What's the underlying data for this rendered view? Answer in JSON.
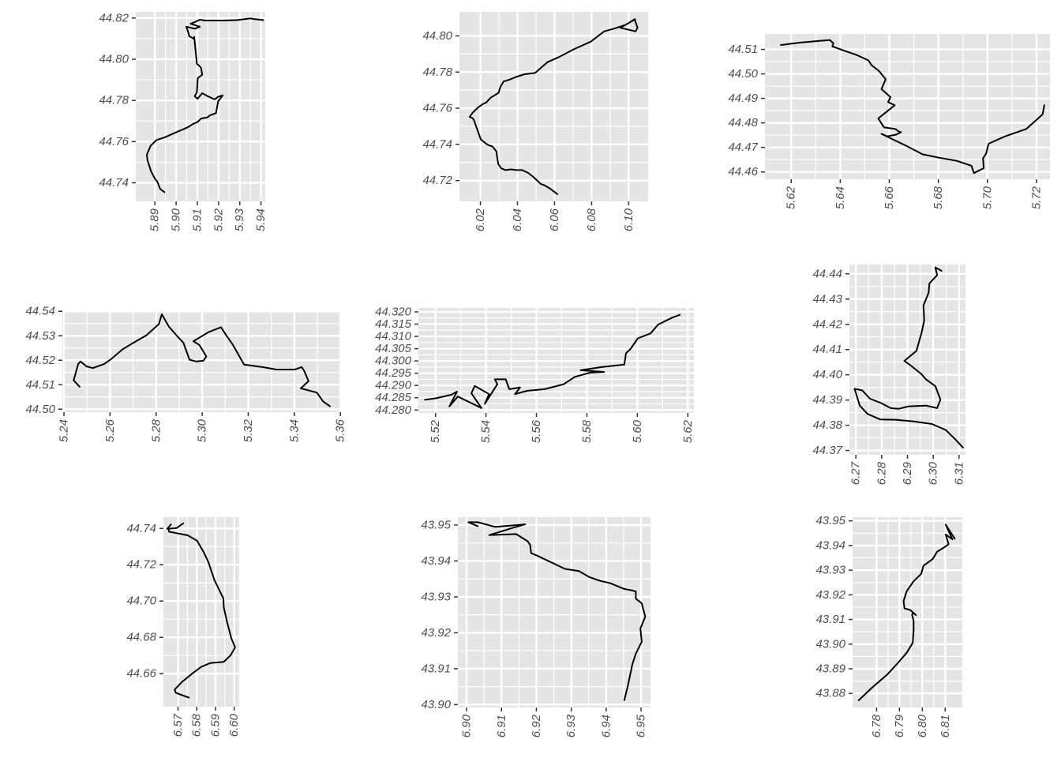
{
  "figure": {
    "background": "#ffffff",
    "panel_background": "#e5e5e5",
    "grid_color": "#ffffff",
    "line_color": "#000000",
    "tick_color": "#333333"
  },
  "chart_data": [
    {
      "type": "line",
      "xlim": [
        5.881,
        5.942
      ],
      "ylim": [
        44.731,
        44.823
      ],
      "xticks": [
        5.89,
        5.9,
        5.91,
        5.92,
        5.93,
        5.94
      ],
      "yticks": [
        44.74,
        44.76,
        44.78,
        44.8,
        44.82
      ],
      "xtick_labels": [
        "5.89",
        "5.90",
        "5.91",
        "5.92",
        "5.93",
        "5.94"
      ],
      "ytick_labels": [
        "44.74",
        "44.76",
        "44.78",
        "44.80",
        "44.82"
      ],
      "x": [
        5.8945,
        5.8925,
        5.8912,
        5.8903,
        5.8882,
        5.8865,
        5.8862,
        5.888,
        5.8908,
        5.8945,
        5.9,
        5.9052,
        5.9082,
        5.9101,
        5.9118,
        5.9148,
        5.9158,
        5.9188,
        5.9198,
        5.922,
        5.9198,
        5.9182,
        5.9165,
        5.915,
        5.9123,
        5.9101,
        5.9088,
        5.9098,
        5.9102,
        5.9123,
        5.9118,
        5.9115,
        5.9098,
        5.9088,
        5.9085,
        5.9085,
        5.9062,
        5.9055,
        5.9048,
        5.9088,
        5.9112,
        5.9068,
        5.9092,
        5.9112,
        5.9135,
        5.9225,
        5.929,
        5.935,
        5.9368,
        5.941
      ],
      "y": [
        44.7355,
        44.737,
        44.7405,
        44.7415,
        44.7455,
        44.751,
        44.7537,
        44.758,
        44.7608,
        44.762,
        44.7645,
        44.7668,
        44.7687,
        44.7695,
        44.7712,
        44.7718,
        44.7727,
        44.7738,
        44.7795,
        44.7825,
        44.7818,
        44.7805,
        44.7813,
        44.782,
        44.7835,
        44.7808,
        44.782,
        44.784,
        44.7908,
        44.7925,
        44.7955,
        44.7962,
        44.7978,
        44.8082,
        44.8108,
        44.8098,
        44.8112,
        44.8138,
        44.8158,
        44.8148,
        44.8158,
        44.8172,
        44.8182,
        44.8192,
        44.8188,
        44.8188,
        44.819,
        44.8198,
        44.8195,
        44.819
      ]
    },
    {
      "type": "line",
      "xlim": [
        6.0087,
        6.1105
      ],
      "ylim": [
        44.7085,
        44.8133
      ],
      "xticks": [
        6.02,
        6.04,
        6.06,
        6.08,
        6.1
      ],
      "yticks": [
        44.72,
        44.74,
        44.76,
        44.78,
        44.8
      ],
      "xtick_labels": [
        "6.02",
        "6.04",
        "6.06",
        "6.08",
        "6.10"
      ],
      "ytick_labels": [
        "44.72",
        "44.74",
        "44.76",
        "44.78",
        "44.80"
      ],
      "x": [
        6.0615,
        6.0572,
        6.0543,
        6.0525,
        6.0488,
        6.0458,
        6.0425,
        6.0392,
        6.0365,
        6.0335,
        6.0312,
        6.0296,
        6.0286,
        6.0265,
        6.0238,
        6.0202,
        6.0175,
        6.0165,
        6.0158,
        6.0142,
        6.0158,
        6.0185,
        6.0212,
        6.0232,
        6.0255,
        6.0298,
        6.0308,
        6.0325,
        6.0355,
        6.0398,
        6.0438,
        6.0495,
        6.0562,
        6.0628,
        6.0702,
        6.0795,
        6.0868,
        6.0928,
        6.0985,
        6.1032,
        6.1048,
        6.1037,
        6.0955,
        6.1035
      ],
      "y": [
        44.7125,
        44.7158,
        44.7175,
        44.7182,
        44.7218,
        44.7242,
        44.7258,
        44.7258,
        44.7262,
        44.7258,
        44.7268,
        44.7292,
        44.7362,
        44.7388,
        44.7398,
        44.7428,
        44.7505,
        44.7535,
        44.7545,
        44.7552,
        44.7575,
        44.7602,
        44.7622,
        44.7632,
        44.7658,
        44.7685,
        44.7718,
        44.7748,
        44.7757,
        44.7775,
        44.7788,
        44.7795,
        44.7855,
        44.7885,
        44.7925,
        44.7968,
        44.8025,
        44.8042,
        44.8062,
        44.8092,
        44.8045,
        44.8025,
        44.8045,
        44.8092
      ]
    },
    {
      "type": "line",
      "xlim": [
        5.6093,
        5.7255
      ],
      "ylim": [
        44.457,
        44.5163
      ],
      "xticks": [
        5.62,
        5.64,
        5.66,
        5.68,
        5.7,
        5.72
      ],
      "yticks": [
        44.46,
        44.47,
        44.48,
        44.49,
        44.5,
        44.51
      ],
      "xtick_labels": [
        "5.62",
        "5.64",
        "5.66",
        "5.68",
        "5.70",
        "5.72"
      ],
      "ytick_labels": [
        "44.46",
        "44.47",
        "44.48",
        "44.49",
        "44.50",
        "44.51"
      ],
      "x": [
        5.6158,
        5.6238,
        5.6315,
        5.6358,
        5.6372,
        5.6368,
        5.6415,
        5.6465,
        5.6515,
        5.6528,
        5.6558,
        5.6585,
        5.6568,
        5.6605,
        5.6595,
        5.6622,
        5.6555,
        5.6578,
        5.6625,
        5.6638,
        5.6648,
        5.6628,
        5.6592,
        5.6568,
        5.6672,
        5.6735,
        5.6802,
        5.6875,
        5.6935,
        5.6945,
        5.6985,
        5.6982,
        5.6995,
        5.7005,
        5.7072,
        5.7158,
        5.7195,
        5.7225,
        5.7232
      ],
      "y": [
        44.5118,
        44.5128,
        44.5135,
        44.5138,
        44.5125,
        44.5112,
        44.5095,
        44.5078,
        44.5055,
        44.5035,
        44.5012,
        44.4978,
        44.4938,
        44.4905,
        44.4885,
        44.4872,
        44.4818,
        44.4782,
        44.4775,
        44.4765,
        44.4762,
        44.4752,
        44.4745,
        44.4755,
        44.4705,
        44.4672,
        44.4658,
        44.4645,
        44.4625,
        44.4595,
        44.4615,
        44.4655,
        44.4675,
        44.4715,
        44.4745,
        44.4775,
        44.4808,
        44.4835,
        44.4872
      ]
    },
    {
      "type": "line",
      "xlim": [
        5.2393,
        5.3596
      ],
      "ylim": [
        44.4988,
        44.5404
      ],
      "xticks": [
        5.24,
        5.26,
        5.28,
        5.3,
        5.32,
        5.34,
        5.36
      ],
      "yticks": [
        44.5,
        44.51,
        44.52,
        44.53,
        44.54
      ],
      "xtick_labels": [
        "5.24",
        "5.26",
        "5.28",
        "5.30",
        "5.32",
        "5.34",
        "5.36"
      ],
      "ytick_labels": [
        "44.50",
        "44.51",
        "44.52",
        "44.53",
        "44.54"
      ],
      "x": [
        5.2468,
        5.2442,
        5.2462,
        5.2472,
        5.2498,
        5.2525,
        5.2575,
        5.2605,
        5.2655,
        5.2708,
        5.2758,
        5.2812,
        5.2825,
        5.2855,
        5.2892,
        5.2918,
        5.2945,
        5.2975,
        5.3005,
        5.3018,
        5.2988,
        5.2962,
        5.3028,
        5.3082,
        5.3102,
        5.3132,
        5.3182,
        5.3262,
        5.3322,
        5.3402,
        5.3432,
        5.3442,
        5.3462,
        5.3428,
        5.3498,
        5.3525,
        5.3555
      ],
      "y": [
        44.5092,
        44.5118,
        44.5185,
        44.5195,
        44.5175,
        44.5168,
        44.5185,
        44.5205,
        44.5245,
        44.5275,
        44.5302,
        44.5348,
        44.5388,
        44.5338,
        44.5298,
        44.5272,
        44.5202,
        44.5195,
        44.5198,
        44.5215,
        44.5262,
        44.5278,
        44.5315,
        44.5335,
        44.5305,
        44.5265,
        44.5182,
        44.5172,
        44.5162,
        44.5162,
        44.5172,
        44.5158,
        44.5115,
        44.5085,
        44.5068,
        44.5032,
        44.5012
      ]
    },
    {
      "type": "line",
      "xlim": [
        5.5132,
        5.6224
      ],
      "ylim": [
        44.2788,
        44.3216
      ],
      "xticks": [
        5.52,
        5.54,
        5.56,
        5.58,
        5.6,
        5.62
      ],
      "yticks": [
        44.28,
        44.285,
        44.29,
        44.295,
        44.3,
        44.305,
        44.31,
        44.315,
        44.32
      ],
      "xtick_labels": [
        "5.52",
        "5.54",
        "5.56",
        "5.58",
        "5.60",
        "5.62"
      ],
      "ytick_labels": [
        "44.280",
        "44.285",
        "44.290",
        "44.295",
        "44.300",
        "44.305",
        "44.310",
        "44.315",
        "44.320"
      ],
      "x": [
        5.5158,
        5.5202,
        5.5262,
        5.5285,
        5.5255,
        5.5288,
        5.5382,
        5.5342,
        5.5355,
        5.5412,
        5.5395,
        5.5445,
        5.5435,
        5.5478,
        5.5492,
        5.5535,
        5.5515,
        5.5562,
        5.5632,
        5.5708,
        5.5752,
        5.5812,
        5.5868,
        5.5775,
        5.5858,
        5.5948,
        5.5955,
        5.5972,
        5.6002,
        5.6052,
        5.6082,
        5.6135,
        5.6168
      ],
      "y": [
        44.2842,
        44.2848,
        44.2862,
        44.2875,
        44.2815,
        44.2855,
        44.2808,
        44.2868,
        44.2898,
        44.2865,
        44.2825,
        44.2905,
        44.2925,
        44.2925,
        44.2885,
        44.2892,
        44.2865,
        44.2878,
        44.2885,
        44.2905,
        44.2935,
        44.2952,
        44.2955,
        44.2962,
        44.2975,
        44.2985,
        44.3032,
        44.3048,
        44.3092,
        44.3112,
        44.3148,
        44.3175,
        44.3188
      ]
    },
    {
      "type": "line",
      "xlim": [
        6.2675,
        6.3125
      ],
      "ylim": [
        44.3683,
        44.4437
      ],
      "xticks": [
        6.27,
        6.28,
        6.29,
        6.3,
        6.31
      ],
      "yticks": [
        44.37,
        44.38,
        44.39,
        44.4,
        44.41,
        44.42,
        44.43,
        44.44
      ],
      "xtick_labels": [
        "6.27",
        "6.28",
        "6.29",
        "6.30",
        "6.31"
      ],
      "ytick_labels": [
        "44.37",
        "44.38",
        "44.39",
        "44.40",
        "44.41",
        "44.42",
        "44.43",
        "44.44"
      ],
      "x": [
        6.3115,
        6.3085,
        6.3048,
        6.2995,
        6.2925,
        6.2855,
        6.2795,
        6.2745,
        6.2715,
        6.2695,
        6.2725,
        6.2755,
        6.2798,
        6.2835,
        6.2865,
        6.2905,
        6.2972,
        6.3015,
        6.3028,
        6.3008,
        6.2972,
        6.2952,
        6.2915,
        6.2888,
        6.2935,
        6.2955,
        6.2965,
        6.2962,
        6.2982,
        6.2985,
        6.3015,
        6.3008,
        6.3032
      ],
      "y": [
        44.3712,
        44.3745,
        44.3782,
        44.3805,
        44.3815,
        44.3822,
        44.3823,
        44.3845,
        44.3878,
        44.3945,
        44.3938,
        44.3905,
        44.3888,
        44.3868,
        44.3865,
        44.3875,
        44.3878,
        44.3868,
        44.3902,
        44.3955,
        44.3982,
        44.4005,
        44.4035,
        44.4055,
        44.4095,
        44.4168,
        44.4215,
        44.4275,
        44.4325,
        44.4362,
        44.4395,
        44.4425,
        44.4412
      ]
    },
    {
      "type": "line",
      "xlim": [
        6.5622,
        6.6027
      ],
      "ylim": [
        44.6418,
        44.7462
      ],
      "xticks": [
        6.57,
        6.58,
        6.59,
        6.6
      ],
      "yticks": [
        44.66,
        44.68,
        44.7,
        44.72,
        44.74
      ],
      "xtick_labels": [
        "6.57",
        "6.58",
        "6.59",
        "6.60"
      ],
      "ytick_labels": [
        "44.66",
        "44.68",
        "44.70",
        "44.72",
        "44.74"
      ],
      "x": [
        6.5758,
        6.5705,
        6.5688,
        6.5682,
        6.5722,
        6.5778,
        6.5825,
        6.5872,
        6.5915,
        6.5945,
        6.5982,
        6.6005,
        6.5985,
        6.5962,
        6.5945,
        6.5942,
        6.5895,
        6.5862,
        6.5838,
        6.5802,
        6.5752,
        6.5702,
        6.5652,
        6.5648,
        6.5662,
        6.5642,
        6.5692,
        6.5728
      ],
      "y": [
        44.6468,
        44.6488,
        44.6495,
        44.6512,
        44.6555,
        44.6602,
        44.6638,
        44.6658,
        44.6662,
        44.6665,
        44.6702,
        44.6745,
        44.6795,
        44.6885,
        44.6962,
        44.7015,
        44.7115,
        44.7215,
        44.7268,
        44.7332,
        44.7362,
        44.7372,
        44.7382,
        44.7405,
        44.7422,
        44.7398,
        44.7402,
        44.7428
      ]
    },
    {
      "type": "line",
      "xlim": [
        6.8975,
        6.9527
      ],
      "ylim": [
        43.8992,
        43.9522
      ],
      "xticks": [
        6.9,
        6.91,
        6.92,
        6.93,
        6.94,
        6.95
      ],
      "yticks": [
        43.9,
        43.91,
        43.92,
        43.93,
        43.94,
        43.95
      ],
      "xtick_labels": [
        "6.90",
        "6.91",
        "6.92",
        "6.93",
        "6.94",
        "6.95"
      ],
      "ytick_labels": [
        "43.90",
        "43.91",
        "43.92",
        "43.93",
        "43.94",
        "43.95"
      ],
      "x": [
        6.9452,
        6.9462,
        6.9475,
        6.9485,
        6.9502,
        6.9498,
        6.9512,
        6.9502,
        6.9485,
        6.9485,
        6.9485,
        6.9475,
        6.9452,
        6.9412,
        6.9382,
        6.9352,
        6.9322,
        6.9282,
        6.9245,
        6.9202,
        6.9185,
        6.9182,
        6.9175,
        6.9142,
        6.9065,
        6.9132,
        6.9168,
        6.9082,
        6.9032,
        6.9005,
        6.9032
      ],
      "y": [
        43.9012,
        43.9052,
        43.9112,
        43.9142,
        43.9175,
        43.9212,
        43.9245,
        43.9282,
        43.9295,
        43.9302,
        43.9315,
        43.9318,
        43.9322,
        43.9338,
        43.9345,
        43.9355,
        43.9372,
        43.9378,
        43.9395,
        43.9415,
        43.9422,
        43.9445,
        43.9455,
        43.9475,
        43.9472,
        43.9492,
        43.9502,
        43.9495,
        43.9508,
        43.9508,
        43.9497
      ]
    },
    {
      "type": "line",
      "xlim": [
        6.7695,
        6.8175
      ],
      "ylim": [
        43.8743,
        43.9515
      ],
      "xticks": [
        6.78,
        6.79,
        6.8,
        6.81
      ],
      "yticks": [
        43.88,
        43.89,
        43.9,
        43.91,
        43.92,
        43.93,
        43.94,
        43.95
      ],
      "xtick_labels": [
        "6.78",
        "6.79",
        "6.80",
        "6.81"
      ],
      "ytick_labels": [
        "43.88",
        "43.89",
        "43.90",
        "43.91",
        "43.92",
        "43.93",
        "43.94",
        "43.95"
      ],
      "x": [
        6.7722,
        6.7782,
        6.7845,
        6.7892,
        6.7932,
        6.7958,
        6.7962,
        6.7962,
        6.7955,
        6.7958,
        6.7972,
        6.7948,
        6.7922,
        6.7918,
        6.7932,
        6.7962,
        6.7995,
        6.8005,
        6.8045,
        6.8065,
        6.8095,
        6.8115,
        6.8102,
        6.8132,
        6.8102,
        6.8142
      ],
      "y": [
        43.8772,
        43.8825,
        43.8875,
        43.8922,
        43.8965,
        43.9005,
        43.9055,
        43.9095,
        43.9118,
        43.9128,
        43.9118,
        43.9138,
        43.9145,
        43.9175,
        43.9215,
        43.9255,
        43.9285,
        43.9318,
        43.9345,
        43.9375,
        43.9392,
        43.9405,
        43.9445,
        43.9425,
        43.9485,
        43.9428
      ]
    }
  ]
}
